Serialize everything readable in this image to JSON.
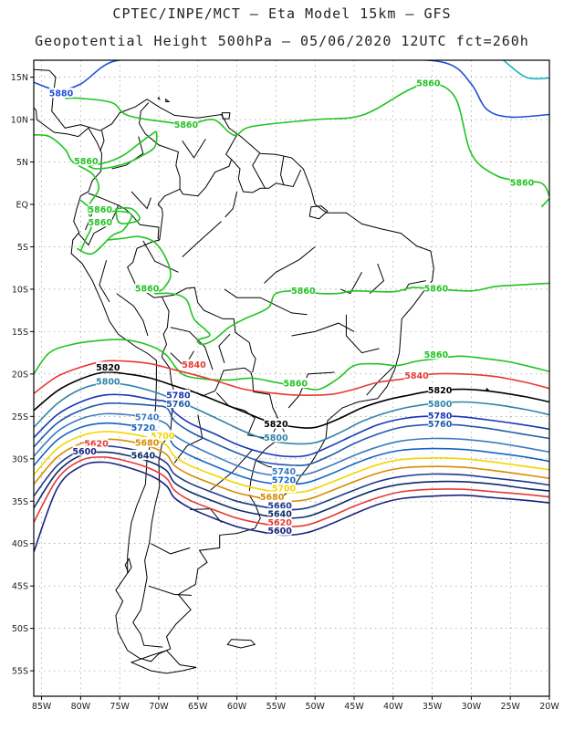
{
  "header": {
    "line1": "CPTEC/INPE/MCT –  Eta Model 15km – GFS",
    "line2": "Geopotential Height 500hPa – 05/06/2020 12UTC fct=260h"
  },
  "axes": {
    "lon_labels": [
      "85W",
      "80W",
      "75W",
      "70W",
      "65W",
      "60W",
      "55W",
      "50W",
      "45W",
      "40W",
      "35W",
      "30W",
      "25W",
      "20W"
    ],
    "lat_labels": [
      "15N",
      "10N",
      "5N",
      "EQ",
      "5S",
      "10S",
      "15S",
      "20S",
      "25S",
      "30S",
      "35S",
      "40S",
      "45S",
      "50S",
      "55S"
    ],
    "lon_values": [
      -85,
      -80,
      -75,
      -70,
      -65,
      -60,
      -55,
      -50,
      -45,
      -40,
      -35,
      -30,
      -25,
      -20
    ],
    "lat_values": [
      15,
      10,
      5,
      0,
      -5,
      -10,
      -15,
      -20,
      -25,
      -30,
      -35,
      -40,
      -45,
      -50,
      -55
    ],
    "lon_range": [
      -86,
      -20
    ],
    "lat_range": [
      17,
      -58
    ],
    "grid": "dotted"
  },
  "contour_colors": {
    "5600": "#1a237e",
    "5620": "#e53935",
    "5640": "#0d2b6b",
    "5660": "#1e3a8a",
    "5680": "#d98c00",
    "5700": "#f2d600",
    "5720": "#1565c0",
    "5740": "#3b7bbf",
    "5760": "#1e5aa8",
    "5780": "#1736b6",
    "5800": "#2f84a8",
    "5820": "#000000",
    "5840": "#e53935",
    "5860": "#22c322",
    "5880": "#1f4fd6",
    "5900": "#20b0c0",
    "land": "#000000"
  },
  "contour_labels": [
    {
      "text": "5880",
      "lon": -82.5,
      "lat": 13.0,
      "level": "5880"
    },
    {
      "text": "5860",
      "lon": -35.5,
      "lat": 14.2,
      "level": "5860"
    },
    {
      "text": "5860",
      "lon": -66.5,
      "lat": 9.3,
      "level": "5860"
    },
    {
      "text": "5860",
      "lon": -79.3,
      "lat": 5.0,
      "level": "5860"
    },
    {
      "text": "5860",
      "lon": -23.5,
      "lat": 2.5,
      "level": "5860"
    },
    {
      "text": "5860",
      "lon": -77.5,
      "lat": -0.7,
      "level": "5860"
    },
    {
      "text": "5860",
      "lon": -77.5,
      "lat": -2.2,
      "level": "5860"
    },
    {
      "text": "5860",
      "lon": -71.5,
      "lat": -10.0,
      "level": "5860"
    },
    {
      "text": "5860",
      "lon": -51.5,
      "lat": -10.3,
      "level": "5860"
    },
    {
      "text": "5860",
      "lon": -34.5,
      "lat": -10.0,
      "level": "5860"
    },
    {
      "text": "5860",
      "lon": -34.5,
      "lat": -17.8,
      "level": "5860"
    },
    {
      "text": "5860",
      "lon": -52.5,
      "lat": -21.2,
      "level": "5860"
    },
    {
      "text": "5840",
      "lon": -65.5,
      "lat": -19.0,
      "level": "5840"
    },
    {
      "text": "5840",
      "lon": -37.0,
      "lat": -20.3,
      "level": "5840"
    },
    {
      "text": "5820",
      "lon": -76.5,
      "lat": -19.3,
      "level": "5820"
    },
    {
      "text": "5820",
      "lon": -34.0,
      "lat": -22.0,
      "level": "5820"
    },
    {
      "text": "5820",
      "lon": -55.0,
      "lat": -26.0,
      "level": "5820"
    },
    {
      "text": "5800",
      "lon": -76.5,
      "lat": -21.0,
      "level": "5800"
    },
    {
      "text": "5800",
      "lon": -34.0,
      "lat": -23.6,
      "level": "5800"
    },
    {
      "text": "5800",
      "lon": -55.0,
      "lat": -27.6,
      "level": "5800"
    },
    {
      "text": "5780",
      "lon": -67.5,
      "lat": -22.6,
      "level": "5780"
    },
    {
      "text": "5780",
      "lon": -34.0,
      "lat": -25.0,
      "level": "5780"
    },
    {
      "text": "5760",
      "lon": -67.5,
      "lat": -23.6,
      "level": "5760"
    },
    {
      "text": "5760",
      "lon": -34.0,
      "lat": -26.0,
      "level": "5760"
    },
    {
      "text": "5740",
      "lon": -71.5,
      "lat": -25.2,
      "level": "5740"
    },
    {
      "text": "5740",
      "lon": -54.0,
      "lat": -31.6,
      "level": "5740"
    },
    {
      "text": "5720",
      "lon": -72.0,
      "lat": -26.4,
      "level": "5720"
    },
    {
      "text": "5720",
      "lon": -54.0,
      "lat": -32.6,
      "level": "5720"
    },
    {
      "text": "5700",
      "lon": -69.5,
      "lat": -27.4,
      "level": "5700"
    },
    {
      "text": "5700",
      "lon": -54.0,
      "lat": -33.6,
      "level": "5700"
    },
    {
      "text": "5680",
      "lon": -71.5,
      "lat": -28.2,
      "level": "5680"
    },
    {
      "text": "5680",
      "lon": -55.5,
      "lat": -34.6,
      "level": "5680"
    },
    {
      "text": "5660",
      "lon": -54.5,
      "lat": -35.6,
      "level": "5660"
    },
    {
      "text": "5640",
      "lon": -72.0,
      "lat": -29.7,
      "level": "5640"
    },
    {
      "text": "5640",
      "lon": -54.5,
      "lat": -36.6,
      "level": "5640"
    },
    {
      "text": "5620",
      "lon": -78.0,
      "lat": -28.3,
      "level": "5620"
    },
    {
      "text": "5620",
      "lon": -54.5,
      "lat": -37.6,
      "level": "5620"
    },
    {
      "text": "5600",
      "lon": -79.5,
      "lat": -29.2,
      "level": "5600"
    },
    {
      "text": "5600",
      "lon": -54.5,
      "lat": -38.6,
      "level": "5600"
    }
  ]
}
